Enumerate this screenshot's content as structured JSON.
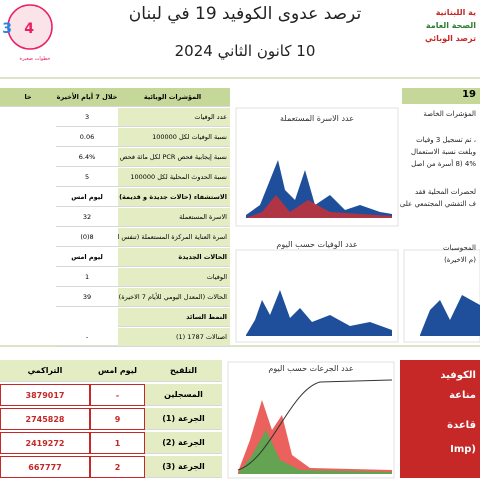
{
  "header": {
    "logo_lines": [
      "ية اللبنانية",
      "الصحة العامة",
      "ترصد الوبائي"
    ],
    "title": "ترصد عدوى الكوفيد 19 في لبنان",
    "subtitle": "10 كانون الثاني 2024"
  },
  "indicators": {
    "header": [
      "المؤشرات الوبائية",
      "خلال 7 أيام الأخيرة",
      "خا"
    ],
    "rows": [
      [
        "عدد الوفيات",
        3
      ],
      [
        "نسبة الوفيات لكل 100000",
        0.06
      ],
      [
        "نسبة إيجابية فحص PCR لكل مائة فحص",
        "6.4%"
      ],
      [
        "نسبة الحدوث المحلية لكل 100000",
        5
      ],
      [
        "الاستشفاء (حالات جديدة و قديمة)",
        "ليوم امس"
      ],
      [
        "الاسرة المستعملة",
        32
      ],
      [
        "اسرة العناية المركزة المستعملة (تنفس اصطناعي)",
        "8(0)"
      ],
      [
        "الحالات الجديدة",
        "ليوم امس"
      ],
      [
        "الوفيات",
        1
      ],
      [
        "الحالات (المعدل اليومي للأيام 7 الاخيرة)",
        39
      ],
      [
        "النمط السائد"
      ],
      [
        "اصنالات 1787 (1)",
        "-"
      ]
    ]
  },
  "charts": [
    {
      "title": "عدد الاسرة المستعملة"
    },
    {
      "title": "عدد الوفيات حسب اليوم"
    },
    {
      "title": "عدد الجرعات حسب اليوم"
    }
  ],
  "side": {
    "title": "19",
    "lines": [
      "المؤشرات الخاصة",
      "، تم تسجيل 3 وفيات",
      "وبلغت نسبة الاستعمال",
      "4% (8 أسرة من اصل",
      "لحصرات المحلية فقد",
      "ف التفشي المجتمعي على",
      "المحوسبات",
      "(م الاخيرة)"
    ]
  },
  "vaccination": {
    "header": [
      "التلقيح",
      "ليوم امس",
      "التراكمي"
    ],
    "rows": [
      [
        "المسجلين",
        "-",
        3879017
      ],
      [
        "الجرعة (1)",
        9,
        2745828
      ],
      [
        "الجرعة (2)",
        1,
        2419272
      ],
      [
        "الجرعة (3)",
        2,
        667777
      ]
    ]
  },
  "bottom_side": {
    "lines": [
      "الكوفيد",
      "مناعة",
      "قاعدة",
      "(Imp"
    ]
  }
}
